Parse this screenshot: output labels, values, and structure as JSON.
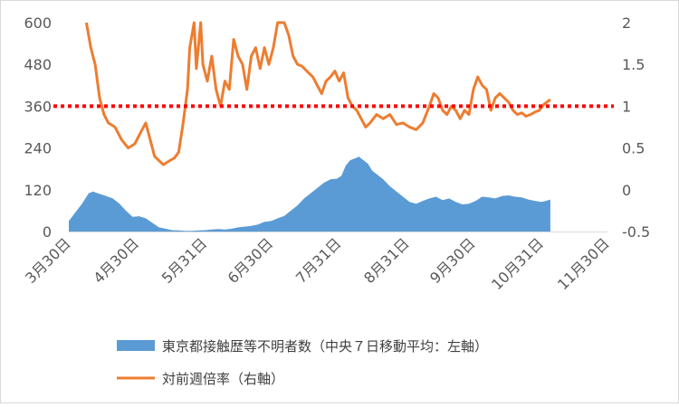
{
  "chart_data": {
    "type": "area+line",
    "x_tick_labels": [
      "3月30日",
      "4月30日",
      "5月31日",
      "6月30日",
      "7月31日",
      "8月31日",
      "9月30日",
      "10月31日",
      "11月30日"
    ],
    "left_axis": {
      "ticks": [
        "0",
        "120",
        "240",
        "360",
        "480",
        "600"
      ],
      "ylim": [
        0,
        600
      ]
    },
    "right_axis": {
      "ticks": [
        "-0.5",
        "0",
        "0.5",
        "1",
        "1.5",
        "2"
      ],
      "ylim": [
        -0.5,
        2
      ]
    },
    "grid": false,
    "legend_position": "bottom",
    "reference_line": {
      "axis": "right",
      "value": 1,
      "color": "#ff0000",
      "style": "dotted"
    },
    "series": [
      {
        "name": "東京都接触歴等不明者数（中央７日移動平均：左軸）",
        "kind": "area",
        "axis": "left",
        "color": "#5b9bd5",
        "points": [
          [
            "2020-03-30",
            30
          ],
          [
            "2020-04-02",
            55
          ],
          [
            "2020-04-05",
            80
          ],
          [
            "2020-04-08",
            110
          ],
          [
            "2020-04-10",
            115
          ],
          [
            "2020-04-13",
            108
          ],
          [
            "2020-04-16",
            102
          ],
          [
            "2020-04-19",
            95
          ],
          [
            "2020-04-22",
            80
          ],
          [
            "2020-04-25",
            60
          ],
          [
            "2020-04-28",
            42
          ],
          [
            "2020-05-01",
            44
          ],
          [
            "2020-05-04",
            38
          ],
          [
            "2020-05-07",
            25
          ],
          [
            "2020-05-10",
            12
          ],
          [
            "2020-05-13",
            8
          ],
          [
            "2020-05-16",
            4
          ],
          [
            "2020-05-19",
            3
          ],
          [
            "2020-05-22",
            2
          ],
          [
            "2020-05-25",
            2
          ],
          [
            "2020-05-28",
            3
          ],
          [
            "2020-05-31",
            4
          ],
          [
            "2020-06-03",
            6
          ],
          [
            "2020-06-06",
            7
          ],
          [
            "2020-06-09",
            6
          ],
          [
            "2020-06-12",
            8
          ],
          [
            "2020-06-15",
            12
          ],
          [
            "2020-06-18",
            14
          ],
          [
            "2020-06-21",
            16
          ],
          [
            "2020-06-24",
            20
          ],
          [
            "2020-06-27",
            28
          ],
          [
            "2020-06-30",
            30
          ],
          [
            "2020-07-03",
            38
          ],
          [
            "2020-07-06",
            45
          ],
          [
            "2020-07-09",
            60
          ],
          [
            "2020-07-12",
            75
          ],
          [
            "2020-07-15",
            95
          ],
          [
            "2020-07-18",
            110
          ],
          [
            "2020-07-21",
            125
          ],
          [
            "2020-07-24",
            140
          ],
          [
            "2020-07-27",
            150
          ],
          [
            "2020-07-30",
            152
          ],
          [
            "2020-08-01",
            160
          ],
          [
            "2020-08-03",
            190
          ],
          [
            "2020-08-05",
            205
          ],
          [
            "2020-08-07",
            210
          ],
          [
            "2020-08-09",
            215
          ],
          [
            "2020-08-11",
            205
          ],
          [
            "2020-08-13",
            195
          ],
          [
            "2020-08-15",
            175
          ],
          [
            "2020-08-17",
            165
          ],
          [
            "2020-08-20",
            150
          ],
          [
            "2020-08-23",
            130
          ],
          [
            "2020-08-26",
            115
          ],
          [
            "2020-08-29",
            100
          ],
          [
            "2020-09-01",
            85
          ],
          [
            "2020-09-04",
            80
          ],
          [
            "2020-09-07",
            88
          ],
          [
            "2020-09-10",
            95
          ],
          [
            "2020-09-13",
            100
          ],
          [
            "2020-09-16",
            90
          ],
          [
            "2020-09-19",
            95
          ],
          [
            "2020-09-22",
            85
          ],
          [
            "2020-09-25",
            78
          ],
          [
            "2020-09-28",
            80
          ],
          [
            "2020-10-01",
            88
          ],
          [
            "2020-10-04",
            100
          ],
          [
            "2020-10-07",
            98
          ],
          [
            "2020-10-10",
            95
          ],
          [
            "2020-10-13",
            102
          ],
          [
            "2020-10-16",
            104
          ],
          [
            "2020-10-19",
            100
          ],
          [
            "2020-10-22",
            98
          ],
          [
            "2020-10-25",
            92
          ],
          [
            "2020-10-28",
            88
          ],
          [
            "2020-10-31",
            85
          ],
          [
            "2020-11-02",
            88
          ],
          [
            "2020-11-04",
            92
          ]
        ]
      },
      {
        "name": "対前週倍率（右軸）",
        "kind": "line",
        "axis": "right",
        "color": "#ed7d31",
        "points": [
          [
            "2020-04-07",
            2.0
          ],
          [
            "2020-04-09",
            1.7
          ],
          [
            "2020-04-11",
            1.5
          ],
          [
            "2020-04-13",
            1.1
          ],
          [
            "2020-04-15",
            0.9
          ],
          [
            "2020-04-17",
            0.8
          ],
          [
            "2020-04-20",
            0.75
          ],
          [
            "2020-04-23",
            0.6
          ],
          [
            "2020-04-26",
            0.5
          ],
          [
            "2020-04-29",
            0.55
          ],
          [
            "2020-05-02",
            0.7
          ],
          [
            "2020-05-04",
            0.8
          ],
          [
            "2020-05-06",
            0.6
          ],
          [
            "2020-05-08",
            0.4
          ],
          [
            "2020-05-10",
            0.35
          ],
          [
            "2020-05-12",
            0.3
          ],
          [
            "2020-05-15",
            0.35
          ],
          [
            "2020-05-17",
            0.38
          ],
          [
            "2020-05-19",
            0.45
          ],
          [
            "2020-05-21",
            0.8
          ],
          [
            "2020-05-23",
            1.2
          ],
          [
            "2020-05-24",
            1.7
          ],
          [
            "2020-05-26",
            2.0
          ],
          [
            "2020-05-27",
            1.45
          ],
          [
            "2020-05-29",
            2.0
          ],
          [
            "2020-05-30",
            1.5
          ],
          [
            "2020-06-01",
            1.3
          ],
          [
            "2020-06-03",
            1.6
          ],
          [
            "2020-06-05",
            1.2
          ],
          [
            "2020-06-07",
            1.0
          ],
          [
            "2020-06-09",
            1.3
          ],
          [
            "2020-06-11",
            1.2
          ],
          [
            "2020-06-13",
            1.8
          ],
          [
            "2020-06-15",
            1.6
          ],
          [
            "2020-06-17",
            1.5
          ],
          [
            "2020-06-19",
            1.2
          ],
          [
            "2020-06-21",
            1.6
          ],
          [
            "2020-06-23",
            1.7
          ],
          [
            "2020-06-25",
            1.45
          ],
          [
            "2020-06-27",
            1.7
          ],
          [
            "2020-06-29",
            1.5
          ],
          [
            "2020-07-01",
            1.7
          ],
          [
            "2020-07-03",
            2.0
          ],
          [
            "2020-07-06",
            2.0
          ],
          [
            "2020-07-08",
            1.85
          ],
          [
            "2020-07-10",
            1.6
          ],
          [
            "2020-07-12",
            1.5
          ],
          [
            "2020-07-14",
            1.48
          ],
          [
            "2020-07-17",
            1.4
          ],
          [
            "2020-07-19",
            1.35
          ],
          [
            "2020-07-21",
            1.25
          ],
          [
            "2020-07-23",
            1.15
          ],
          [
            "2020-07-25",
            1.3
          ],
          [
            "2020-07-27",
            1.35
          ],
          [
            "2020-07-29",
            1.42
          ],
          [
            "2020-07-31",
            1.3
          ],
          [
            "2020-08-02",
            1.4
          ],
          [
            "2020-08-04",
            1.1
          ],
          [
            "2020-08-06",
            1.0
          ],
          [
            "2020-08-08",
            0.95
          ],
          [
            "2020-08-10",
            0.85
          ],
          [
            "2020-08-12",
            0.75
          ],
          [
            "2020-08-14",
            0.8
          ],
          [
            "2020-08-17",
            0.9
          ],
          [
            "2020-08-20",
            0.85
          ],
          [
            "2020-08-23",
            0.9
          ],
          [
            "2020-08-26",
            0.78
          ],
          [
            "2020-08-29",
            0.8
          ],
          [
            "2020-09-01",
            0.75
          ],
          [
            "2020-09-04",
            0.72
          ],
          [
            "2020-09-07",
            0.8
          ],
          [
            "2020-09-10",
            1.0
          ],
          [
            "2020-09-12",
            1.15
          ],
          [
            "2020-09-14",
            1.1
          ],
          [
            "2020-09-16",
            0.95
          ],
          [
            "2020-09-18",
            0.9
          ],
          [
            "2020-09-20",
            1.0
          ],
          [
            "2020-09-22",
            0.95
          ],
          [
            "2020-09-24",
            0.85
          ],
          [
            "2020-09-26",
            0.95
          ],
          [
            "2020-09-28",
            0.9
          ],
          [
            "2020-09-30",
            1.2
          ],
          [
            "2020-10-02",
            1.35
          ],
          [
            "2020-10-04",
            1.25
          ],
          [
            "2020-10-06",
            1.2
          ],
          [
            "2020-10-08",
            0.95
          ],
          [
            "2020-10-10",
            1.1
          ],
          [
            "2020-10-12",
            1.15
          ],
          [
            "2020-10-14",
            1.1
          ],
          [
            "2020-10-16",
            1.05
          ],
          [
            "2020-10-18",
            0.95
          ],
          [
            "2020-10-20",
            0.9
          ],
          [
            "2020-10-22",
            0.92
          ],
          [
            "2020-10-24",
            0.88
          ],
          [
            "2020-10-26",
            0.9
          ],
          [
            "2020-10-28",
            0.93
          ],
          [
            "2020-10-30",
            0.95
          ],
          [
            "2020-11-01",
            1.02
          ],
          [
            "2020-11-04",
            1.08
          ]
        ]
      }
    ]
  }
}
